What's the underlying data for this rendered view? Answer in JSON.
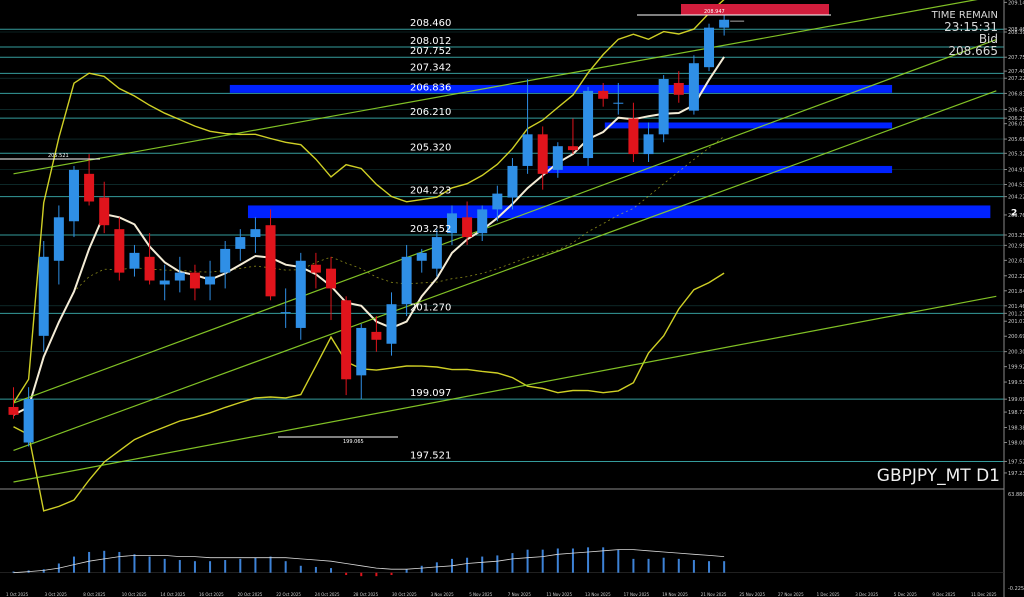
{
  "colors": {
    "background": "#000000",
    "bull": "#2f8fe6",
    "bear": "#e0141c",
    "ma_fast": "#f4ecd6",
    "band": "#e6e629",
    "trend": "#8fd62a",
    "zone": "#0022ff",
    "level": "#3fb8b8",
    "tag": "#d11d3c",
    "axis_text": "#cfcfcf",
    "histogram": "#3d82d6",
    "signal": "#d9d9d9"
  },
  "symbol_label": "GBPJPY_MT D1",
  "info": {
    "time_remain_label": "TIME REMAIN",
    "time_remain_value": "23:15:31",
    "bid_label": "Bid",
    "bid_value": "208.665"
  },
  "tags": {
    "top_box": "208.947",
    "high_marker": "205.521",
    "low_marker": "199.065"
  },
  "price_level_labels": [
    "208.460",
    "208.012",
    "207.752",
    "207.342",
    "206.836",
    "206.210",
    "205.320",
    "204.223",
    "203.252",
    "201.270",
    "199.097",
    "197.521"
  ],
  "axis": {
    "price_ticks": [
      "209.140",
      "208.465",
      "208.390",
      "207.752",
      "207.400",
      "207.220",
      "206.836",
      "206.430",
      "206.210",
      "206.070",
      "205.680",
      "205.320",
      "204.910",
      "204.530",
      "204.223",
      "203.760",
      "203.252",
      "202.990",
      "202.610",
      "202.220",
      "201.840",
      "201.460",
      "201.270",
      "201.070",
      "200.690",
      "200.300",
      "199.920",
      "199.530",
      "199.097",
      "198.770",
      "198.380",
      "198.000",
      "197.521",
      "197.230"
    ],
    "date_ticks": [
      "1 Oct 2025",
      "3 Oct 2025",
      "8 Oct 2025",
      "10 Oct 2025",
      "14 Oct 2025",
      "16 Oct 2025",
      "20 Oct 2025",
      "22 Oct 2025",
      "24 Oct 2025",
      "28 Oct 2025",
      "30 Oct 2025",
      "3 Nov 2025",
      "5 Nov 2025",
      "7 Nov 2025",
      "11 Nov 2025",
      "13 Nov 2025",
      "17 Nov 2025",
      "19 Nov 2025",
      "21 Nov 2025",
      "25 Nov 2025",
      "27 Nov 2025",
      "1 Dec 2025",
      "3 Dec 2025",
      "5 Dec 2025",
      "9 Dec 2025",
      "11 Dec 2025"
    ],
    "zone_marker": "2",
    "indicator_top": "63.8803",
    "indicator_bottom": "-0.2254"
  },
  "chart_data": {
    "type": "candlestick",
    "symbol": "GBPJPY_MT",
    "timeframe": "D1",
    "ylim": [
      196.95,
      209.2
    ],
    "candles": [
      {
        "o": 198.9,
        "h": 199.4,
        "l": 198.6,
        "c": 198.7
      },
      {
        "o": 198.0,
        "h": 199.4,
        "l": 197.9,
        "c": 199.1
      },
      {
        "o": 200.7,
        "h": 203.1,
        "l": 200.3,
        "c": 202.7
      },
      {
        "o": 202.6,
        "h": 204.0,
        "l": 202.0,
        "c": 203.7
      },
      {
        "o": 203.6,
        "h": 205.0,
        "l": 203.2,
        "c": 204.9
      },
      {
        "o": 204.8,
        "h": 205.3,
        "l": 204.0,
        "c": 204.1
      },
      {
        "o": 204.2,
        "h": 204.6,
        "l": 203.3,
        "c": 203.5
      },
      {
        "o": 203.4,
        "h": 203.7,
        "l": 202.1,
        "c": 202.3
      },
      {
        "o": 202.4,
        "h": 203.0,
        "l": 202.2,
        "c": 202.8
      },
      {
        "o": 202.7,
        "h": 203.3,
        "l": 202.0,
        "c": 202.1
      },
      {
        "o": 202.0,
        "h": 202.5,
        "l": 201.6,
        "c": 202.1
      },
      {
        "o": 202.1,
        "h": 202.7,
        "l": 201.8,
        "c": 202.3
      },
      {
        "o": 202.3,
        "h": 202.5,
        "l": 201.6,
        "c": 201.9
      },
      {
        "o": 202.0,
        "h": 202.6,
        "l": 201.6,
        "c": 202.2
      },
      {
        "o": 202.3,
        "h": 203.1,
        "l": 201.9,
        "c": 202.9
      },
      {
        "o": 202.9,
        "h": 203.4,
        "l": 202.6,
        "c": 203.2
      },
      {
        "o": 203.2,
        "h": 203.7,
        "l": 202.8,
        "c": 203.4
      },
      {
        "o": 203.5,
        "h": 203.9,
        "l": 201.6,
        "c": 201.7
      },
      {
        "o": 201.3,
        "h": 201.9,
        "l": 200.9,
        "c": 201.3
      },
      {
        "o": 200.9,
        "h": 202.8,
        "l": 200.6,
        "c": 202.6
      },
      {
        "o": 202.5,
        "h": 202.8,
        "l": 201.9,
        "c": 202.3
      },
      {
        "o": 202.4,
        "h": 202.7,
        "l": 201.1,
        "c": 201.9
      },
      {
        "o": 201.6,
        "h": 201.7,
        "l": 199.2,
        "c": 199.6
      },
      {
        "o": 199.7,
        "h": 201.0,
        "l": 199.1,
        "c": 200.9
      },
      {
        "o": 200.8,
        "h": 201.2,
        "l": 200.3,
        "c": 200.6
      },
      {
        "o": 200.5,
        "h": 201.8,
        "l": 200.2,
        "c": 201.5
      },
      {
        "o": 201.5,
        "h": 203.0,
        "l": 201.2,
        "c": 202.7
      },
      {
        "o": 202.6,
        "h": 202.9,
        "l": 202.3,
        "c": 202.8
      },
      {
        "o": 202.4,
        "h": 203.4,
        "l": 202.2,
        "c": 203.2
      },
      {
        "o": 203.3,
        "h": 204.0,
        "l": 203.0,
        "c": 203.8
      },
      {
        "o": 203.7,
        "h": 204.1,
        "l": 203.0,
        "c": 203.2
      },
      {
        "o": 203.3,
        "h": 204.0,
        "l": 203.1,
        "c": 203.9
      },
      {
        "o": 203.9,
        "h": 204.5,
        "l": 203.6,
        "c": 204.3
      },
      {
        "o": 204.2,
        "h": 205.2,
        "l": 203.9,
        "c": 205.0
      },
      {
        "o": 205.0,
        "h": 207.2,
        "l": 204.8,
        "c": 205.8
      },
      {
        "o": 205.8,
        "h": 206.0,
        "l": 204.4,
        "c": 204.8
      },
      {
        "o": 204.9,
        "h": 205.6,
        "l": 204.7,
        "c": 205.5
      },
      {
        "o": 205.5,
        "h": 206.2,
        "l": 205.3,
        "c": 205.4
      },
      {
        "o": 205.2,
        "h": 207.0,
        "l": 205.0,
        "c": 206.9
      },
      {
        "o": 206.9,
        "h": 207.1,
        "l": 206.5,
        "c": 206.7
      },
      {
        "o": 206.6,
        "h": 207.1,
        "l": 206.3,
        "c": 206.6
      },
      {
        "o": 206.2,
        "h": 206.6,
        "l": 205.1,
        "c": 205.3
      },
      {
        "o": 205.3,
        "h": 206.1,
        "l": 205.1,
        "c": 205.8
      },
      {
        "o": 205.8,
        "h": 207.3,
        "l": 205.6,
        "c": 207.2
      },
      {
        "o": 207.1,
        "h": 207.4,
        "l": 206.6,
        "c": 206.8
      },
      {
        "o": 206.4,
        "h": 207.8,
        "l": 206.3,
        "c": 207.6
      },
      {
        "o": 207.5,
        "h": 208.6,
        "l": 207.4,
        "c": 208.5
      },
      {
        "o": 208.5,
        "h": 208.9,
        "l": 208.3,
        "c": 208.7
      }
    ],
    "horizontal_levels": [
      208.46,
      208.012,
      207.752,
      207.342,
      206.836,
      206.21,
      205.32,
      204.223,
      203.252,
      201.27,
      199.097,
      197.521
    ],
    "indicator_ylim": [
      -15.0,
      70.0
    ],
    "histogram": [
      1,
      2,
      3,
      8,
      14,
      18,
      19,
      18,
      16,
      14,
      12,
      11,
      10,
      10,
      11,
      12,
      13,
      14,
      10,
      6,
      5,
      4,
      -2,
      -3,
      -3,
      -2,
      3,
      6,
      9,
      12,
      13,
      14,
      15,
      17,
      20,
      20,
      21,
      21,
      22,
      22,
      20,
      12,
      12,
      13,
      12,
      11,
      10,
      10
    ],
    "signal": [
      0,
      1,
      2,
      4,
      7,
      10,
      12,
      14,
      15,
      15,
      15,
      14,
      14,
      13,
      13,
      13,
      13,
      13,
      13,
      12,
      11,
      10,
      8,
      6,
      4,
      3,
      3,
      4,
      5,
      6,
      8,
      9,
      10,
      12,
      13,
      14,
      16,
      17,
      18,
      19,
      20,
      20,
      19,
      18,
      17,
      16,
      15,
      14
    ]
  }
}
